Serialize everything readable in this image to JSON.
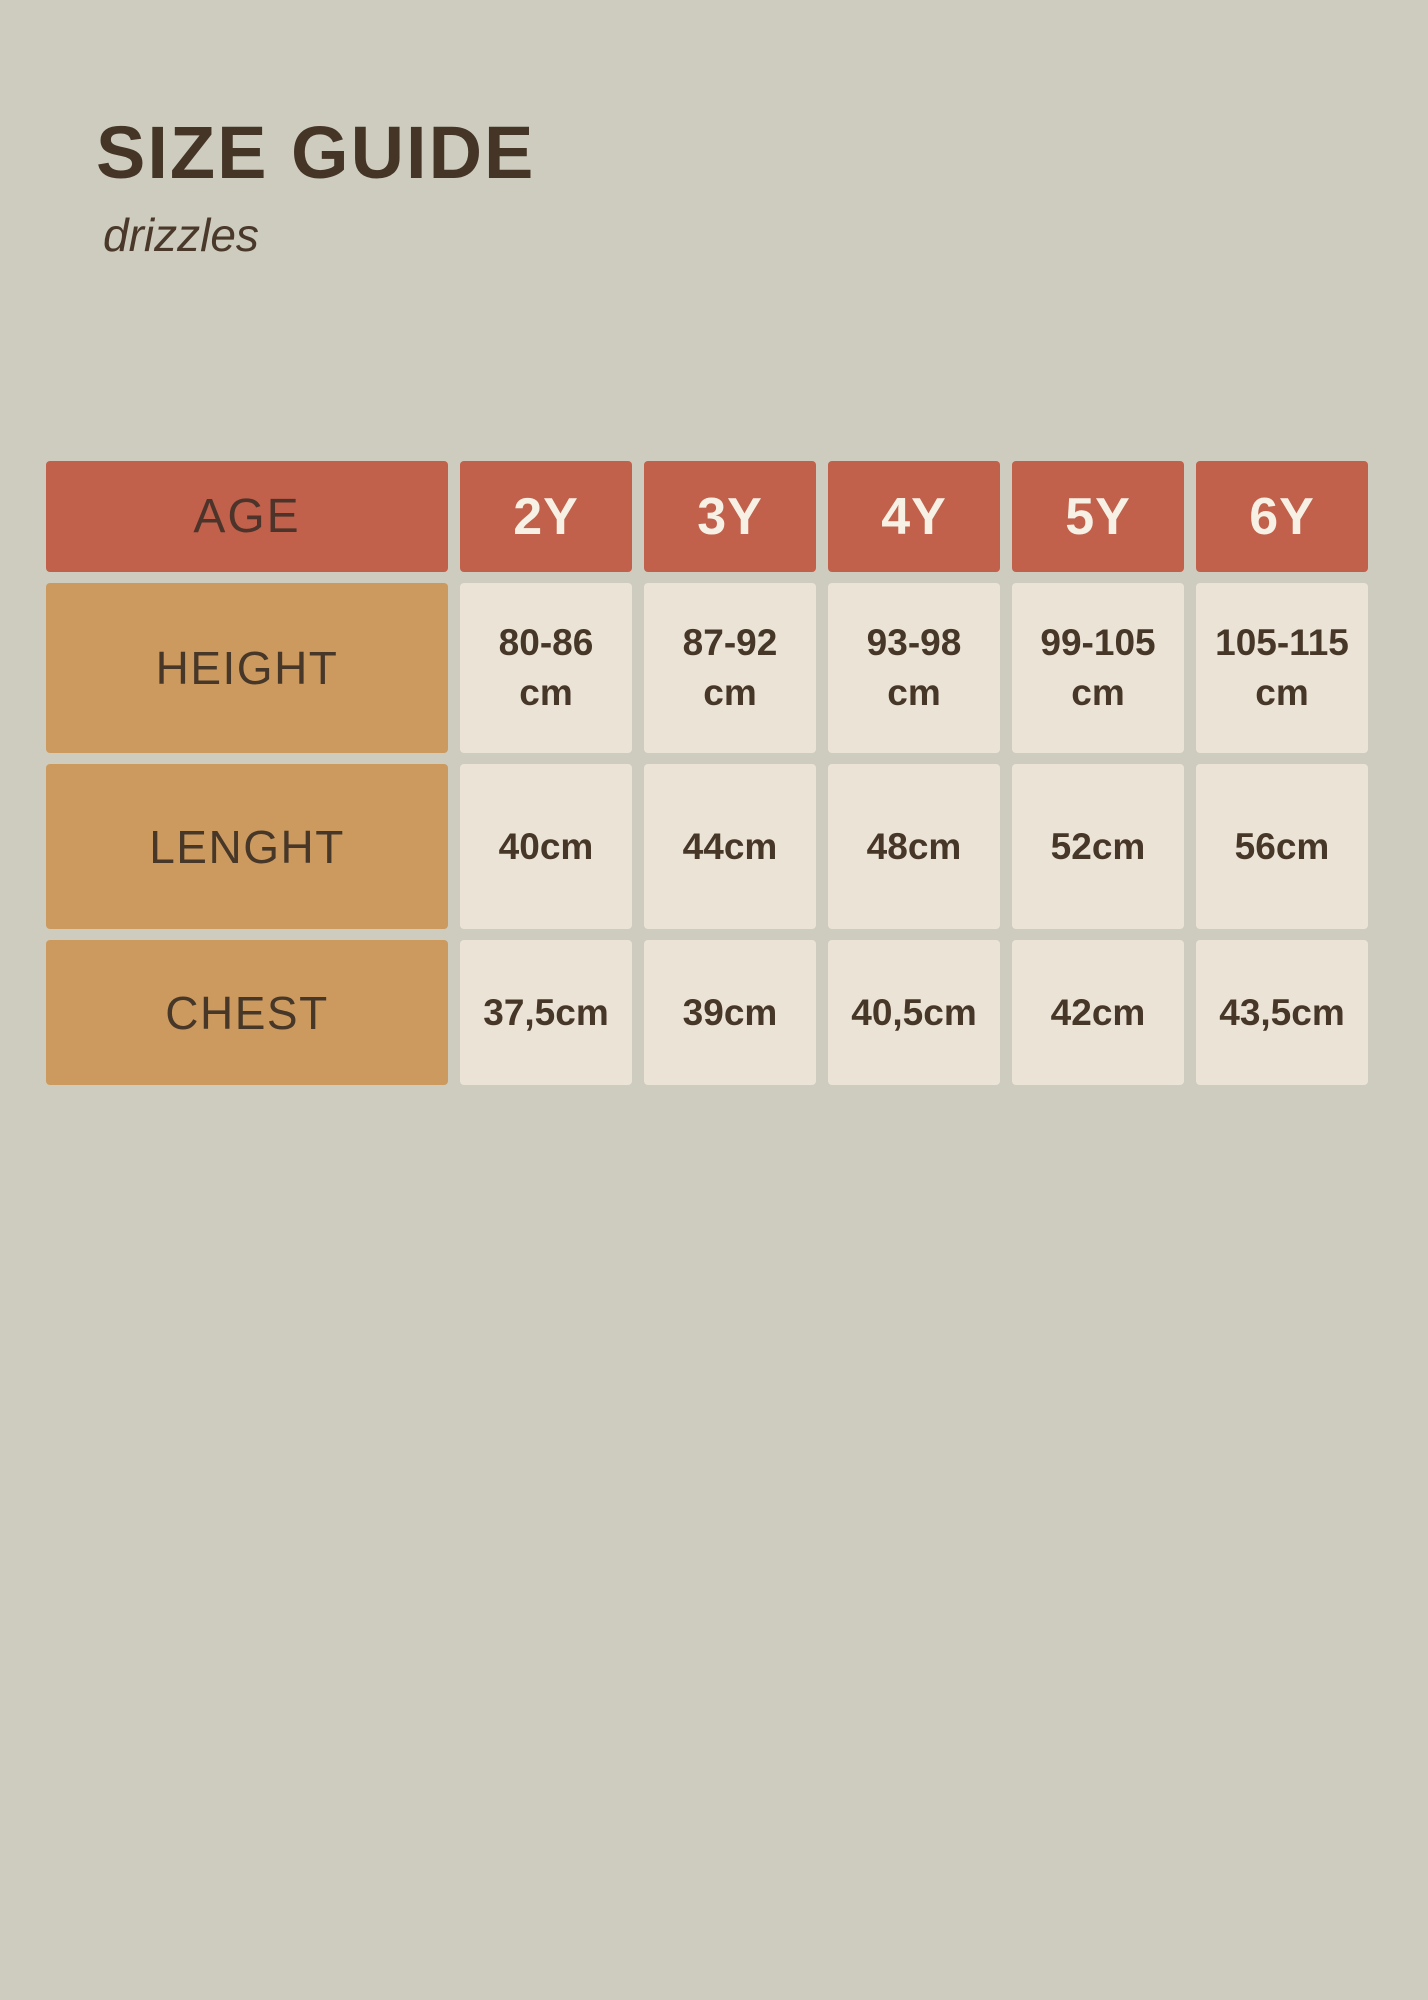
{
  "colors": {
    "background": "#cdccbe",
    "header_cell": "#c1604b",
    "label_cell": "#cc9a5e",
    "data_cell": "#ebe3d6",
    "header_text_light": "#f7f0e5",
    "text_dark_brown": "#463729"
  },
  "header": {
    "title": "SIZE GUIDE",
    "subtitle": "drizzles"
  },
  "table": {
    "columns": [
      "AGE",
      "2Y",
      "3Y",
      "4Y",
      "5Y",
      "6Y"
    ],
    "rows": [
      {
        "label": "HEIGHT",
        "values": [
          "80-86 cm",
          "87-92 cm",
          "93-98 cm",
          "99-105 cm",
          "105-115 cm"
        ]
      },
      {
        "label": "LENGHT",
        "values": [
          "40cm",
          "44cm",
          "48cm",
          "52cm",
          "56cm"
        ]
      },
      {
        "label": "CHEST",
        "values": [
          "37,5cm",
          "39cm",
          "40,5cm",
          "42cm",
          "43,5cm"
        ]
      }
    ]
  }
}
